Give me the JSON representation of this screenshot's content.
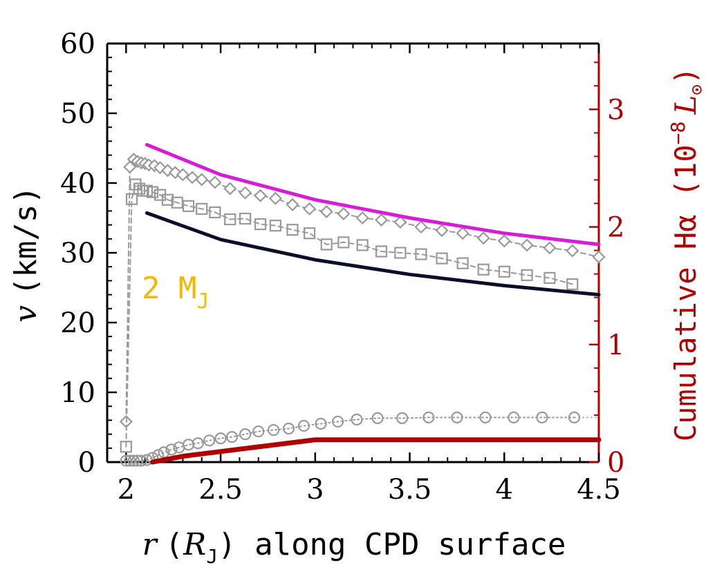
{
  "chart_data": {
    "type": "line",
    "annotation": {
      "text_main": "2 M",
      "text_sub": "J",
      "color": "#F5B800"
    },
    "x_axis": {
      "label_var": "r",
      "label_unit_open": "(",
      "label_unit_var": "R",
      "label_unit_sub": "J",
      "label_rest": ") along CPD surface",
      "xlim": [
        1.9,
        4.5
      ],
      "ticks": [
        2,
        2.5,
        3,
        3.5,
        4,
        4.5
      ],
      "tick_labels": [
        "2",
        "2.5",
        "3",
        "3.5",
        "4",
        "4.5"
      ]
    },
    "y_axis_left": {
      "label_var": "v",
      "label_unit": "(km/s)",
      "ylim": [
        0,
        60
      ],
      "ticks": [
        0,
        10,
        20,
        30,
        40,
        50,
        60
      ],
      "tick_labels": [
        "0",
        "10",
        "20",
        "30",
        "40",
        "50",
        "60"
      ]
    },
    "y_axis_right": {
      "label": "Cumulative Hα (10",
      "label_exp": "−8",
      "label_unit": "L",
      "label_unit_sub": "⊙",
      "label_close": ")",
      "color": "#B00000",
      "ylim": [
        0,
        3.56
      ],
      "ticks": [
        0,
        1,
        2,
        3
      ],
      "tick_labels": [
        "0",
        "1",
        "2",
        "3"
      ]
    },
    "series": [
      {
        "name": "magenta curve",
        "axis": "left",
        "style": "solid",
        "color": "#D81BD8",
        "x": [
          2.11,
          2.5,
          3.0,
          3.5,
          4.0,
          4.5
        ],
        "y": [
          45.5,
          41.2,
          37.6,
          35.0,
          32.8,
          31.2
        ]
      },
      {
        "name": "dark navy curve",
        "axis": "left",
        "style": "solid",
        "color": "#0A0E2A",
        "x": [
          2.11,
          2.5,
          3.0,
          3.5,
          4.0,
          4.5
        ],
        "y": [
          35.7,
          31.9,
          29.0,
          26.9,
          25.3,
          24.0
        ]
      },
      {
        "name": "diamonds",
        "axis": "left",
        "style": "dashed-markers",
        "marker": "diamond",
        "color": "#999999",
        "x": [
          2.0,
          2.02,
          2.04,
          2.06,
          2.08,
          2.1,
          2.12,
          2.15,
          2.18,
          2.22,
          2.26,
          2.3,
          2.35,
          2.4,
          2.47,
          2.55,
          2.63,
          2.71,
          2.79,
          2.88,
          2.97,
          3.06,
          3.15,
          3.25,
          3.35,
          3.45,
          3.56,
          3.67,
          3.78,
          3.89,
          4.0,
          4.12,
          4.24,
          4.36,
          4.5
        ],
        "y": [
          5.8,
          42.3,
          43.4,
          43.1,
          42.9,
          42.8,
          42.6,
          42.5,
          42.2,
          41.8,
          41.5,
          41.2,
          40.8,
          40.5,
          40.1,
          39.2,
          38.6,
          38.2,
          37.8,
          36.9,
          36.3,
          35.9,
          35.6,
          35.0,
          34.7,
          34.4,
          33.7,
          33.2,
          32.8,
          32.1,
          31.7,
          31.1,
          30.7,
          30.3,
          29.4
        ]
      },
      {
        "name": "squares",
        "axis": "left",
        "style": "dashed-markers",
        "marker": "square",
        "color": "#999999",
        "x": [
          2.0,
          2.03,
          2.05,
          2.07,
          2.09,
          2.11,
          2.14,
          2.18,
          2.22,
          2.27,
          2.33,
          2.4,
          2.47,
          2.55,
          2.63,
          2.71,
          2.79,
          2.88,
          2.97,
          3.06,
          3.15,
          3.25,
          3.35,
          3.45,
          3.56,
          3.67,
          3.78,
          3.89,
          4.0,
          4.12,
          4.24,
          4.36
        ],
        "y": [
          2.2,
          37.7,
          39.8,
          39.2,
          38.9,
          38.9,
          38.7,
          38.3,
          37.6,
          37.2,
          36.7,
          36.3,
          35.8,
          34.8,
          34.9,
          34.1,
          33.9,
          33.3,
          32.8,
          31.2,
          31.5,
          31.1,
          30.2,
          30.0,
          29.8,
          29.2,
          28.5,
          27.6,
          27.3,
          26.8,
          26.4,
          25.5
        ]
      },
      {
        "name": "circles",
        "axis": "left",
        "style": "dotted-markers",
        "marker": "circle",
        "color": "#999999",
        "x": [
          2.0,
          2.02,
          2.04,
          2.06,
          2.08,
          2.11,
          2.14,
          2.17,
          2.2,
          2.24,
          2.28,
          2.33,
          2.38,
          2.44,
          2.5,
          2.56,
          2.63,
          2.7,
          2.78,
          2.86,
          2.94,
          3.03,
          3.12,
          3.22,
          3.33,
          3.46,
          3.6,
          3.75,
          3.9,
          4.05,
          4.2,
          4.37
        ],
        "y": [
          0.2,
          0.2,
          0.2,
          0.2,
          0.2,
          0.3,
          0.6,
          1.0,
          1.4,
          1.8,
          2.1,
          2.5,
          2.7,
          3.1,
          3.4,
          3.6,
          4.0,
          4.4,
          4.6,
          4.8,
          5.2,
          5.5,
          5.8,
          6.1,
          6.3,
          6.3,
          6.4,
          6.4,
          6.4,
          6.4,
          6.4,
          6.4
        ]
      },
      {
        "name": "cumulative H-alpha",
        "axis": "right",
        "style": "solid-thick",
        "color": "#B00000",
        "x": [
          2.14,
          2.3,
          2.5,
          2.7,
          2.9,
          3.0,
          3.2,
          3.5,
          4.0,
          4.5
        ],
        "y": [
          0.0,
          0.05,
          0.09,
          0.13,
          0.17,
          0.19,
          0.19,
          0.19,
          0.19,
          0.19
        ]
      }
    ]
  }
}
